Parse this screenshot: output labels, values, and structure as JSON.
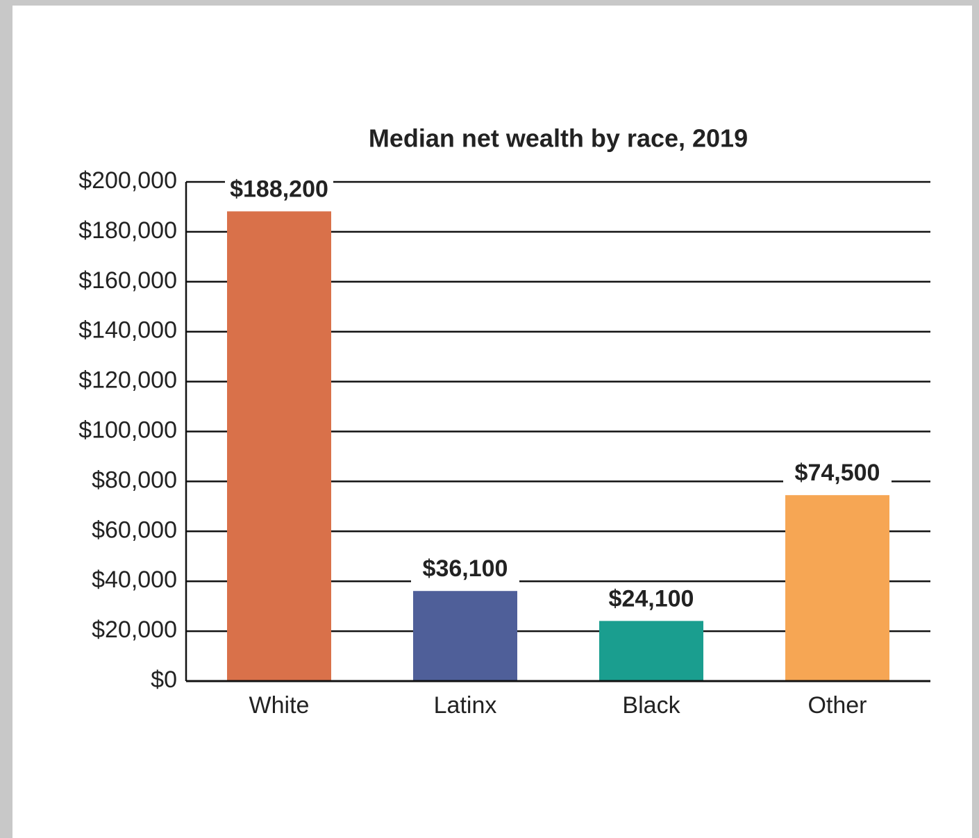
{
  "chart_data": {
    "type": "bar",
    "title": "Median net wealth by race, 2019",
    "categories": [
      "White",
      "Latinx",
      "Black",
      "Other"
    ],
    "values": [
      188200,
      36100,
      24100,
      74500
    ],
    "value_labels": [
      "$188,200",
      "$36,100",
      "$24,100",
      "$74,500"
    ],
    "colors": [
      "#d9714a",
      "#4f5f99",
      "#1a9e8f",
      "#f6a654"
    ],
    "ylim": [
      0,
      200000
    ],
    "yticks": [
      {
        "value": 0,
        "label": "$0"
      },
      {
        "value": 20000,
        "label": "$20,000"
      },
      {
        "value": 40000,
        "label": "$40,000"
      },
      {
        "value": 60000,
        "label": "$60,000"
      },
      {
        "value": 80000,
        "label": "$80,000"
      },
      {
        "value": 100000,
        "label": "$100,000"
      },
      {
        "value": 120000,
        "label": "$120,000"
      },
      {
        "value": 140000,
        "label": "$140,000"
      },
      {
        "value": 160000,
        "label": "$160,000"
      },
      {
        "value": 180000,
        "label": "$180,000"
      },
      {
        "value": 200000,
        "label": "$200,000"
      }
    ],
    "grid": true
  }
}
